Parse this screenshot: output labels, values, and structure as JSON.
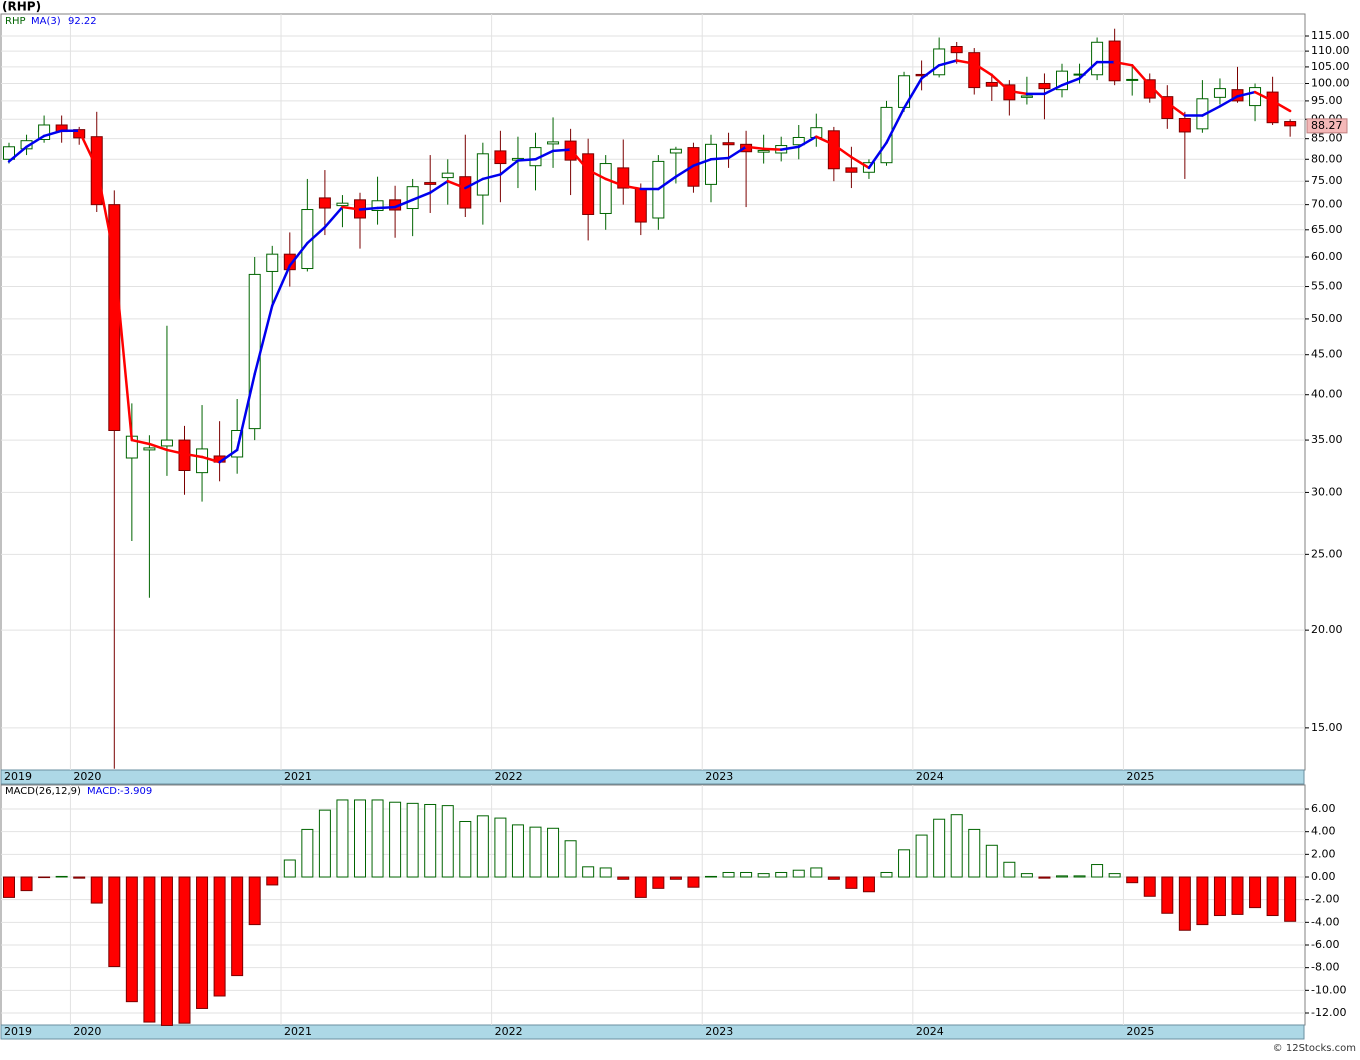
{
  "chart_data": [
    {
      "type": "candlestick",
      "title": "(RHP)",
      "series_label": "RHP",
      "ma_label": "MA(3)",
      "log_scale": true,
      "grid": true,
      "up_color": "#ffffff",
      "down_color": "#ff0000",
      "up_edge": "#006400",
      "down_edge": "#7a0000",
      "ma_up_color": "#0000ee",
      "ma_down_color": "#ff0000",
      "last_price_color": "#f4b8b8",
      "categories": [
        "2019",
        null,
        null,
        null,
        "2020",
        null,
        null,
        null,
        null,
        null,
        null,
        null,
        null,
        null,
        null,
        null,
        "2021",
        null,
        null,
        null,
        null,
        null,
        null,
        null,
        null,
        null,
        null,
        null,
        "2022",
        null,
        null,
        null,
        null,
        null,
        null,
        null,
        null,
        null,
        null,
        null,
        "2023",
        null,
        null,
        null,
        null,
        null,
        null,
        null,
        null,
        null,
        null,
        null,
        "2024",
        null,
        null,
        null,
        null,
        null,
        null,
        null,
        null,
        null,
        null,
        null,
        "2025",
        null,
        null,
        null,
        null,
        null,
        null,
        null,
        null,
        null
      ],
      "open": [
        80,
        82.5,
        84.8,
        88.5,
        87.3,
        85.5,
        70,
        33.2,
        34,
        34.4,
        35,
        31.8,
        33.4,
        33.3,
        36.2,
        57.5,
        60.5,
        58,
        71.4,
        69.8,
        71,
        68.8,
        71,
        69.2,
        74.7,
        75.8,
        76,
        72,
        82,
        79.8,
        78.5,
        83.7,
        84.4,
        81.3,
        68.2,
        78,
        73.3,
        67.3,
        81.5,
        82.8,
        74.3,
        84,
        83.6,
        81.7,
        81.5,
        83.5,
        85.3,
        87,
        78,
        77,
        79.2,
        93.2,
        102.7,
        102.6,
        111.5,
        109.5,
        100.3,
        99.6,
        96,
        100,
        98.2,
        102.5,
        102.6,
        113.3,
        101,
        101.1,
        96.2,
        90.2,
        87.5,
        96,
        98.2,
        93.7,
        97.5,
        89.4
      ],
      "high": [
        84,
        86,
        91,
        91,
        88,
        92,
        73,
        39,
        35.5,
        49,
        36.5,
        38.8,
        37,
        39.5,
        60,
        62,
        64.5,
        75.5,
        77.5,
        72,
        72.5,
        76,
        74,
        75.5,
        81,
        80,
        86,
        84,
        87,
        85.5,
        86.5,
        90.5,
        87.5,
        85,
        81,
        84.8,
        74.5,
        81,
        83,
        84,
        86,
        86.5,
        87,
        86,
        85.5,
        88.5,
        91.5,
        88,
        83,
        80,
        95,
        103.5,
        107,
        114.5,
        113,
        111,
        103,
        101,
        102,
        103,
        106,
        106,
        114.5,
        117.5,
        105.5,
        103,
        99.5,
        92,
        101,
        101.5,
        105,
        100,
        102,
        90
      ],
      "low": [
        79,
        81,
        84,
        84,
        83.5,
        68.5,
        13.3,
        26,
        22,
        31.5,
        29.8,
        29.2,
        31,
        31.7,
        35,
        52,
        55,
        57.5,
        64,
        65.5,
        61.5,
        66,
        63.5,
        63.8,
        68.3,
        70,
        67.5,
        66,
        70.5,
        73.5,
        73,
        78,
        72,
        63,
        65,
        70,
        64,
        65,
        74.5,
        72.5,
        70.5,
        78,
        69.5,
        79,
        79.5,
        80,
        83,
        75,
        73.5,
        75.5,
        78.5,
        92,
        98,
        101.8,
        106,
        96.8,
        95,
        91,
        94,
        90,
        96,
        100,
        101,
        99.5,
        96.5,
        94.5,
        87.5,
        75.5,
        86.5,
        94,
        94.5,
        89.5,
        88.5,
        85.5
      ],
      "close": [
        83,
        84.5,
        88.5,
        86.8,
        85.2,
        70,
        36,
        35.4,
        34.2,
        35,
        32,
        34.1,
        32.8,
        36,
        57,
        60.5,
        57.8,
        69,
        69.3,
        70.3,
        67.3,
        70.8,
        68.9,
        73.8,
        74.3,
        76.8,
        69.3,
        81.3,
        79,
        80.2,
        82.8,
        84.2,
        79.8,
        68,
        79,
        73.5,
        66.5,
        79.5,
        82.4,
        73.9,
        83.6,
        83.5,
        81.8,
        82.1,
        83.3,
        85.3,
        87.8,
        77.8,
        77,
        79.2,
        93.2,
        102.3,
        102.3,
        110.7,
        109.5,
        98.8,
        99.2,
        95.3,
        96.4,
        98.5,
        103.7,
        102.8,
        112.9,
        100.8,
        101.2,
        95.8,
        90.2,
        86.7,
        95.6,
        98.5,
        95,
        98.8,
        89.1,
        88.27
      ],
      "ma": [
        79.5,
        83,
        85.7,
        87,
        87,
        78,
        60,
        35,
        34.6,
        34,
        33.6,
        33.3,
        32.8,
        34,
        42.5,
        52,
        58.5,
        62.5,
        65.5,
        69.5,
        69,
        69.3,
        69.5,
        71,
        72.5,
        75,
        73.5,
        75.5,
        76.5,
        79.7,
        80,
        82,
        82.3,
        77.5,
        75.5,
        74,
        73.3,
        73.3,
        76,
        78.5,
        80,
        80.3,
        83,
        82.5,
        82.3,
        83,
        85.5,
        83.5,
        80.5,
        78,
        84,
        93,
        101.5,
        105.5,
        107,
        106,
        102.5,
        97.8,
        97,
        97,
        99.5,
        101.5,
        106.5,
        106.5,
        105.5,
        99.5,
        94.5,
        91,
        91,
        93.5,
        96.3,
        97.5,
        95,
        92.22
      ],
      "ylim": [
        13.25,
        122.7
      ],
      "yticks": [
        {
          "value": 15,
          "label": "15.00"
        },
        {
          "value": 20,
          "label": "20.00"
        },
        {
          "value": 25,
          "label": "25.00"
        },
        {
          "value": 30,
          "label": "30.00"
        },
        {
          "value": 35,
          "label": "35.00"
        },
        {
          "value": 40,
          "label": "40.00"
        },
        {
          "value": 45,
          "label": "45.00"
        },
        {
          "value": 50,
          "label": "50.00"
        },
        {
          "value": 55,
          "label": "55.00"
        },
        {
          "value": 60,
          "label": "60.00"
        },
        {
          "value": 65,
          "label": "65.00"
        },
        {
          "value": 70,
          "label": "70.00"
        },
        {
          "value": 75,
          "label": "75.00"
        },
        {
          "value": 80,
          "label": "80.00"
        },
        {
          "value": 85,
          "label": "85.00"
        },
        {
          "value": 90,
          "label": "90.00"
        },
        {
          "value": 95,
          "label": "95.00"
        },
        {
          "value": 100,
          "label": "100.00"
        },
        {
          "value": 105,
          "label": "105.00"
        },
        {
          "value": 110,
          "label": "110.00"
        },
        {
          "value": 115,
          "label": "115.00"
        }
      ]
    },
    {
      "type": "macd",
      "series_label": "MACD(26,12,9)",
      "current_label": "MACD:",
      "grid": true,
      "pos_color": "#ffffff",
      "pos_edge": "#006400",
      "neg_color": "#ff0000",
      "neg_edge": "#7a0000",
      "categories": [
        "2019",
        null,
        null,
        null,
        "2020",
        null,
        null,
        null,
        null,
        null,
        null,
        null,
        null,
        null,
        null,
        null,
        "2021",
        null,
        null,
        null,
        null,
        null,
        null,
        null,
        null,
        null,
        null,
        null,
        "2022",
        null,
        null,
        null,
        null,
        null,
        null,
        null,
        null,
        null,
        null,
        null,
        "2023",
        null,
        null,
        null,
        null,
        null,
        null,
        null,
        null,
        null,
        null,
        null,
        "2024",
        null,
        null,
        null,
        null,
        null,
        null,
        null,
        null,
        null,
        null,
        null,
        "2025",
        null,
        null,
        null,
        null,
        null,
        null,
        null,
        null,
        null
      ],
      "values": [
        -1.8,
        -1.2,
        -0.05,
        0.05,
        -0.1,
        -2.3,
        -7.9,
        -11,
        -12.8,
        -13.1,
        -12.9,
        -11.6,
        -10.5,
        -8.7,
        -4.2,
        -0.7,
        1.5,
        4.2,
        5.9,
        6.8,
        6.8,
        6.8,
        6.6,
        6.5,
        6.4,
        6.3,
        4.9,
        5.4,
        5.2,
        4.6,
        4.4,
        4.3,
        3.2,
        0.9,
        0.8,
        -0.2,
        -1.8,
        -1,
        -0.2,
        -0.9,
        0.05,
        0.4,
        0.4,
        0.3,
        0.4,
        0.6,
        0.8,
        -0.2,
        -1,
        -1.3,
        0.4,
        2.4,
        3.7,
        5.1,
        5.5,
        4.2,
        2.8,
        1.3,
        0.3,
        -0.1,
        0.1,
        0.1,
        1.1,
        0.3,
        -0.5,
        -1.7,
        -3.2,
        -4.7,
        -4.2,
        -3.4,
        -3.3,
        -2.7,
        -3.4,
        -3.909
      ],
      "ylim": [
        -13.06,
        8.12
      ],
      "yticks": [
        {
          "value": -12,
          "label": "-12.00"
        },
        {
          "value": -10,
          "label": "-10.00"
        },
        {
          "value": -8,
          "label": "-8.00"
        },
        {
          "value": -6,
          "label": "-6.00"
        },
        {
          "value": -4,
          "label": "-4.00"
        },
        {
          "value": -2,
          "label": "-2.00"
        },
        {
          "value": 0,
          "label": "0.00"
        },
        {
          "value": 2,
          "label": "2.00"
        },
        {
          "value": 4,
          "label": "4.00"
        },
        {
          "value": 6,
          "label": "6.00"
        }
      ]
    }
  ],
  "footer": "© 12Stocks.com"
}
